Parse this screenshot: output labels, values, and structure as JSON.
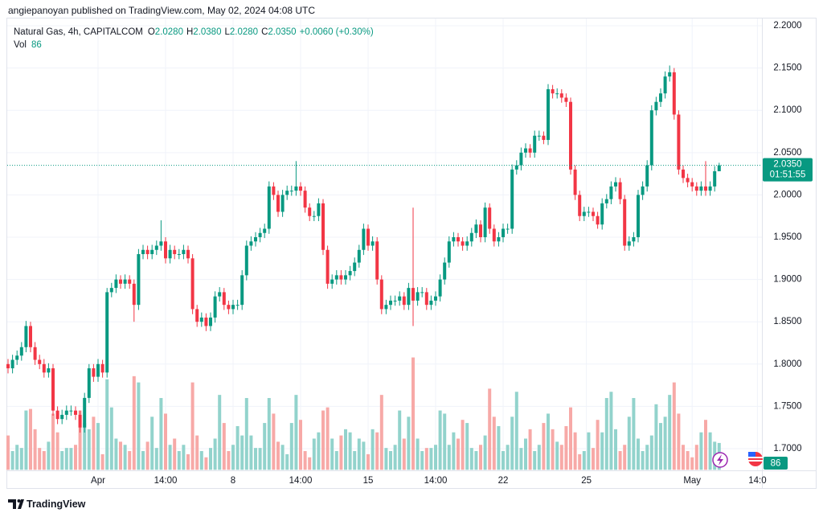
{
  "header": {
    "byline": "angiepanoyan published on TradingView.com, May 02, 2024 04:08 UTC"
  },
  "footer": {
    "brand": "TradingView"
  },
  "chart_data": {
    "type": "candlestick",
    "symbol": "Natural Gas, 4h, CAPITALCOM",
    "legend": {
      "o_label": "O",
      "open": "2.0280",
      "h_label": "H",
      "high": "2.0380",
      "l_label": "L",
      "low": "2.0280",
      "c_label": "C",
      "close": "2.0350",
      "change": "+0.0060 (+0.30%)",
      "vol_label": "Vol"
    },
    "last_price_label": "2.0350",
    "countdown": "01:51:55",
    "up_color": "#089981",
    "down_color": "#f23645",
    "up_volume_color": "#92d3cc",
    "down_volume_color": "#f7a9a7",
    "grid": true,
    "xlim": [
      0,
      167.5
    ],
    "xticks": [
      {
        "value": 20,
        "label": "Apr"
      },
      {
        "value": 35,
        "label": "14:00"
      },
      {
        "value": 50,
        "label": "8"
      },
      {
        "value": 65,
        "label": "14:00"
      },
      {
        "value": 80,
        "label": "15"
      },
      {
        "value": 95,
        "label": "14:00"
      },
      {
        "value": 110,
        "label": "22"
      },
      {
        "value": 128.5,
        "label": "25"
      },
      {
        "value": 152,
        "label": "May"
      },
      {
        "value": 166.5,
        "label": "14:0"
      }
    ],
    "ylim": [
      1.675,
      2.21
    ],
    "yticks": [
      {
        "value": 1.7,
        "label": "1.7000"
      },
      {
        "value": 1.75,
        "label": "1.7500"
      },
      {
        "value": 1.8,
        "label": "1.8000"
      },
      {
        "value": 1.85,
        "label": "1.8500"
      },
      {
        "value": 1.9,
        "label": "1.9000"
      },
      {
        "value": 1.95,
        "label": "1.9500"
      },
      {
        "value": 2.0,
        "label": "2.0000"
      },
      {
        "value": 2.05,
        "label": "2.0500"
      },
      {
        "value": 2.1,
        "label": "2.1000"
      },
      {
        "value": 2.15,
        "label": "2.1500"
      },
      {
        "value": 2.2,
        "label": "2.2000"
      }
    ],
    "vol_ylim": [
      0,
      1450
    ],
    "open": [
      1.8,
      1.795,
      1.805,
      1.81,
      1.82,
      1.845,
      1.82,
      1.805,
      1.8,
      1.79,
      1.795,
      1.745,
      1.735,
      1.74,
      1.745,
      1.745,
      1.74,
      1.725,
      1.76,
      1.795,
      1.785,
      1.8,
      1.79,
      1.885,
      1.89,
      1.9,
      1.895,
      1.9,
      1.895,
      1.87,
      1.93,
      1.935,
      1.93,
      1.935,
      1.94,
      1.945,
      1.925,
      1.935,
      1.93,
      1.93,
      1.935,
      1.925,
      1.865,
      1.85,
      1.855,
      1.845,
      1.855,
      1.88,
      1.885,
      1.87,
      1.865,
      1.87,
      1.87,
      1.905,
      1.94,
      1.945,
      1.95,
      1.955,
      1.96,
      2.01,
      2.0,
      1.98,
      2.0,
      2.005,
      2.005,
      2.01,
      2.005,
      1.985,
      1.975,
      1.975,
      1.99,
      1.935,
      1.895,
      1.9,
      1.905,
      1.9,
      1.905,
      1.91,
      1.92,
      1.935,
      1.96,
      1.94,
      1.945,
      1.9,
      1.865,
      1.87,
      1.875,
      1.875,
      1.88,
      1.87,
      1.89,
      1.875,
      1.885,
      1.885,
      1.87,
      1.875,
      1.88,
      1.9,
      1.92,
      1.945,
      1.95,
      1.945,
      1.94,
      1.945,
      1.955,
      1.965,
      1.95,
      1.985,
      1.96,
      1.945,
      1.95,
      1.96,
      1.96,
      2.03,
      2.035,
      2.05,
      2.055,
      2.05,
      2.07,
      2.07,
      2.065,
      2.125,
      2.12,
      2.12,
      2.115,
      2.11,
      2.03,
      2.0,
      1.975,
      1.98,
      1.98,
      1.975,
      1.965,
      1.99,
      1.995,
      2.01,
      2.015,
      1.995,
      1.94,
      1.945,
      1.95,
      2.0,
      2.01,
      2.035,
      2.1,
      2.11,
      2.12,
      2.14,
      2.145,
      2.095,
      2.03,
      2.02,
      2.015,
      2.01,
      2.005,
      2.01,
      2.005,
      2.01,
      2.028
    ],
    "high": [
      1.806,
      1.811,
      1.816,
      1.826,
      1.851,
      1.85,
      1.826,
      1.811,
      1.806,
      1.801,
      1.8,
      1.75,
      1.746,
      1.751,
      1.751,
      1.75,
      1.745,
      1.766,
      1.8,
      1.8,
      1.806,
      1.805,
      1.89,
      1.896,
      1.906,
      1.905,
      1.906,
      1.905,
      1.9,
      1.936,
      1.941,
      1.94,
      1.941,
      1.946,
      1.97,
      1.95,
      1.941,
      1.94,
      1.936,
      1.941,
      1.94,
      1.93,
      1.87,
      1.861,
      1.86,
      1.861,
      1.886,
      1.891,
      1.89,
      1.875,
      1.876,
      1.876,
      1.911,
      1.946,
      1.951,
      1.956,
      1.961,
      1.966,
      2.016,
      2.015,
      2.005,
      2.006,
      2.011,
      2.011,
      2.04,
      2.015,
      2.01,
      1.99,
      1.981,
      1.996,
      1.995,
      1.94,
      1.906,
      1.911,
      1.911,
      1.911,
      1.916,
      1.926,
      1.941,
      1.966,
      1.965,
      1.951,
      1.95,
      1.905,
      1.876,
      1.881,
      1.881,
      1.886,
      1.885,
      1.896,
      1.985,
      1.891,
      1.891,
      1.89,
      1.881,
      1.886,
      1.906,
      1.926,
      1.951,
      1.956,
      1.955,
      1.95,
      1.951,
      1.961,
      1.971,
      1.97,
      1.991,
      1.99,
      1.965,
      1.956,
      1.966,
      1.966,
      2.036,
      2.041,
      2.056,
      2.061,
      2.06,
      2.076,
      2.076,
      2.075,
      2.131,
      2.13,
      2.126,
      2.125,
      2.12,
      2.115,
      2.035,
      2.005,
      1.986,
      1.986,
      1.985,
      1.98,
      1.996,
      2.001,
      2.016,
      2.021,
      2.02,
      2.0,
      1.951,
      1.956,
      2.006,
      2.016,
      2.041,
      2.106,
      2.116,
      2.126,
      2.146,
      2.153,
      2.15,
      2.1,
      2.035,
      2.025,
      2.02,
      2.015,
      2.016,
      2.04,
      2.016,
      2.034,
      2.038
    ],
    "low": [
      1.789,
      1.789,
      1.799,
      1.804,
      1.814,
      1.814,
      1.799,
      1.794,
      1.784,
      1.784,
      1.739,
      1.729,
      1.729,
      1.734,
      1.739,
      1.734,
      1.719,
      1.719,
      1.754,
      1.779,
      1.779,
      1.784,
      1.784,
      1.879,
      1.884,
      1.889,
      1.889,
      1.889,
      1.85,
      1.864,
      1.924,
      1.924,
      1.924,
      1.929,
      1.934,
      1.919,
      1.919,
      1.924,
      1.924,
      1.924,
      1.919,
      1.859,
      1.844,
      1.844,
      1.839,
      1.839,
      1.849,
      1.874,
      1.864,
      1.859,
      1.859,
      1.864,
      1.864,
      1.899,
      1.934,
      1.939,
      1.944,
      1.949,
      1.954,
      1.994,
      1.974,
      1.974,
      1.994,
      1.999,
      1.999,
      1.999,
      1.979,
      1.969,
      1.969,
      1.969,
      1.929,
      1.889,
      1.889,
      1.894,
      1.894,
      1.894,
      1.899,
      1.904,
      1.914,
      1.929,
      1.934,
      1.934,
      1.894,
      1.859,
      1.859,
      1.864,
      1.869,
      1.869,
      1.864,
      1.864,
      1.845,
      1.869,
      1.879,
      1.864,
      1.864,
      1.869,
      1.874,
      1.894,
      1.914,
      1.939,
      1.939,
      1.934,
      1.934,
      1.939,
      1.949,
      1.944,
      1.944,
      1.954,
      1.939,
      1.939,
      1.944,
      1.954,
      1.954,
      2.024,
      2.029,
      2.044,
      2.044,
      2.044,
      2.064,
      2.06,
      2.059,
      2.114,
      2.114,
      2.109,
      2.104,
      2.024,
      1.994,
      1.969,
      1.969,
      1.974,
      1.969,
      1.96,
      1.959,
      1.984,
      1.989,
      2.004,
      1.989,
      1.934,
      1.934,
      1.939,
      1.944,
      1.994,
      2.004,
      2.029,
      2.094,
      2.104,
      2.114,
      2.134,
      2.089,
      2.024,
      2.014,
      2.009,
      2.004,
      1.999,
      1.999,
      1.999,
      1.999,
      2.004,
      2.028
    ],
    "close": [
      1.795,
      1.805,
      1.81,
      1.82,
      1.845,
      1.82,
      1.805,
      1.8,
      1.79,
      1.795,
      1.745,
      1.735,
      1.74,
      1.745,
      1.745,
      1.74,
      1.725,
      1.76,
      1.795,
      1.785,
      1.8,
      1.79,
      1.885,
      1.89,
      1.9,
      1.895,
      1.9,
      1.895,
      1.87,
      1.93,
      1.935,
      1.93,
      1.935,
      1.94,
      1.945,
      1.925,
      1.935,
      1.93,
      1.93,
      1.935,
      1.925,
      1.865,
      1.85,
      1.855,
      1.845,
      1.855,
      1.88,
      1.885,
      1.87,
      1.865,
      1.87,
      1.87,
      1.905,
      1.94,
      1.945,
      1.95,
      1.955,
      1.96,
      2.01,
      2.0,
      1.98,
      2.0,
      2.005,
      2.005,
      2.01,
      2.005,
      1.985,
      1.975,
      1.975,
      1.99,
      1.935,
      1.895,
      1.9,
      1.905,
      1.9,
      1.905,
      1.91,
      1.92,
      1.935,
      1.96,
      1.94,
      1.945,
      1.9,
      1.865,
      1.87,
      1.875,
      1.875,
      1.88,
      1.87,
      1.89,
      1.875,
      1.885,
      1.885,
      1.87,
      1.875,
      1.88,
      1.9,
      1.92,
      1.945,
      1.95,
      1.945,
      1.94,
      1.945,
      1.955,
      1.965,
      1.95,
      1.985,
      1.96,
      1.945,
      1.95,
      1.96,
      1.96,
      2.03,
      2.035,
      2.05,
      2.055,
      2.05,
      2.07,
      2.07,
      2.065,
      2.125,
      2.12,
      2.12,
      2.115,
      2.11,
      2.03,
      2.0,
      1.975,
      1.98,
      1.98,
      1.975,
      1.965,
      1.99,
      1.995,
      2.01,
      2.015,
      1.995,
      1.94,
      1.945,
      1.95,
      2.0,
      2.01,
      2.035,
      2.1,
      2.11,
      2.12,
      2.14,
      2.145,
      2.095,
      2.03,
      2.02,
      2.015,
      2.01,
      2.005,
      2.01,
      2.005,
      2.01,
      2.028,
      2.035
    ],
    "volume": [
      110,
      60,
      80,
      70,
      190,
      195,
      130,
      70,
      60,
      90,
      180,
      120,
      60,
      70,
      70,
      80,
      190,
      150,
      130,
      170,
      150,
      50,
      290,
      200,
      100,
      90,
      80,
      60,
      300,
      280,
      60,
      90,
      170,
      70,
      230,
      180,
      80,
      100,
      60,
      80,
      50,
      280,
      110,
      60,
      40,
      70,
      100,
      240,
      150,
      60,
      80,
      140,
      110,
      230,
      110,
      70,
      70,
      150,
      230,
      180,
      90,
      80,
      50,
      150,
      240,
      160,
      60,
      40,
      100,
      120,
      190,
      200,
      100,
      60,
      110,
      130,
      120,
      60,
      100,
      90,
      50,
      130,
      120,
      240,
      70,
      60,
      80,
      190,
      100,
      170,
      360,
      100,
      60,
      70,
      70,
      80,
      190,
      180,
      80,
      120,
      100,
      160,
      150,
      70,
      60,
      80,
      110,
      260,
      170,
      140,
      60,
      80,
      170,
      250,
      70,
      100,
      130,
      60,
      80,
      150,
      180,
      130,
      90,
      80,
      140,
      200,
      120,
      50,
      60,
      120,
      70,
      160,
      120,
      230,
      250,
      130,
      60,
      80,
      170,
      230,
      100,
      60,
      80,
      110,
      210,
      150,
      170,
      240,
      280,
      180,
      80,
      60,
      40,
      80,
      120,
      160,
      120,
      90,
      86
    ]
  }
}
